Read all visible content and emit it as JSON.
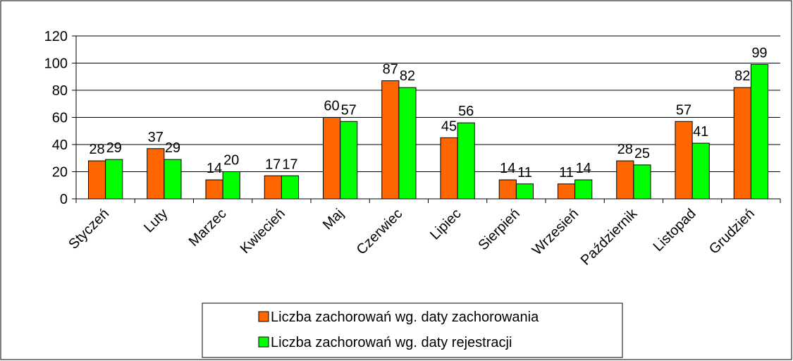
{
  "chart_data": {
    "type": "bar",
    "categories": [
      "Styczeń",
      "Luty",
      "Marzec",
      "Kwiecień",
      "Maj",
      "Czerwiec",
      "Lipiec",
      "Sierpień",
      "Wrzesień",
      "Październik",
      "Listopad",
      "Grudzień"
    ],
    "series": [
      {
        "name": "Liczba zachorowań wg. daty zachorowania",
        "color": "#ff6600",
        "values": [
          28,
          37,
          14,
          17,
          60,
          87,
          45,
          14,
          11,
          28,
          57,
          82
        ]
      },
      {
        "name": "Liczba zachorowań wg. daty rejestracji",
        "color": "#00ff00",
        "values": [
          29,
          29,
          20,
          17,
          57,
          82,
          56,
          11,
          14,
          25,
          41,
          99
        ]
      }
    ],
    "ylim": [
      0,
      120
    ],
    "yticks": [
      0,
      20,
      40,
      60,
      80,
      100,
      120
    ],
    "grid": true,
    "legend": "bottom"
  }
}
